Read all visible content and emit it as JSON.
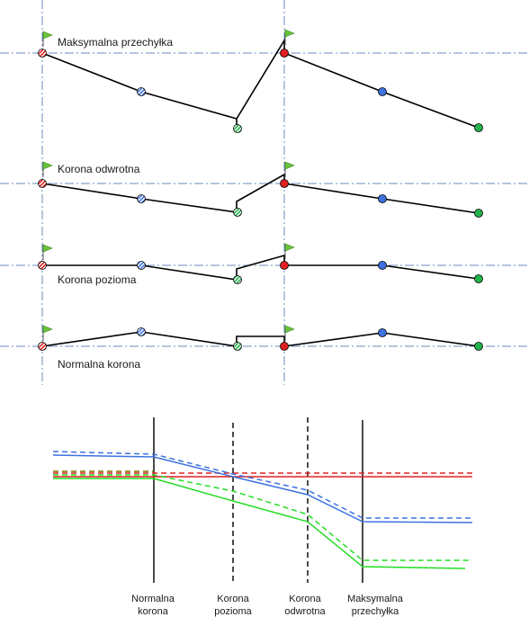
{
  "top_panel": {
    "labels": {
      "max_superelevation": "Maksymalna przechyłka",
      "reverse_crown": "Korona odwrotna",
      "level_crown": "Korona pozioma",
      "normal_crown": "Normalna korona"
    }
  },
  "bottom_chart": {
    "stations": [
      {
        "line1": "Normalna",
        "line2": "korona"
      },
      {
        "line1": "Korona",
        "line2": "pozioma"
      },
      {
        "line1": "Korona",
        "line2": "odwrotna"
      },
      {
        "line1": "Maksymalna",
        "line2": "przechyłka"
      }
    ]
  },
  "colors": {
    "left_edge": "#e02020",
    "centerline": "#3d72e0",
    "right_edge": "#22b24a",
    "flag": "#6cc23a",
    "axis": "#6a8bbf",
    "stroke": "#000000"
  }
}
